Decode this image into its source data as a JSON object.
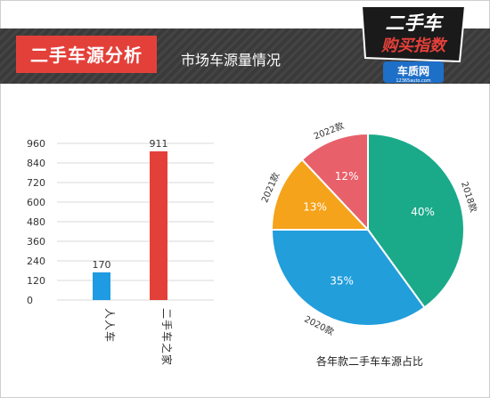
{
  "header": {
    "title": "二手车源分析",
    "subtitle": "市场车源量情况",
    "logo_line1": "二手车",
    "logo_line2": "购买指数",
    "logo_brand": "车质网",
    "logo_url": "12365auto.com"
  },
  "colors": {
    "banner_bg": "#3a3a3a",
    "title_bg": "#e4403a",
    "bar_renren": "#1e9be3",
    "bar_ershou": "#e4403a",
    "pie_2018": "#1aaa8a",
    "pie_2020": "#229edb",
    "pie_2021": "#f5a31a",
    "pie_2022": "#e8606a"
  },
  "chart_data": [
    {
      "type": "bar",
      "categories": [
        "人人车",
        "二手车之家"
      ],
      "values": [
        170,
        911
      ],
      "ylim": [
        0,
        960
      ],
      "yticks": [
        0,
        120,
        240,
        360,
        480,
        600,
        720,
        840,
        960
      ],
      "grid": true
    },
    {
      "type": "pie",
      "title": "各年款二手车车源占比",
      "labels": [
        "2018款",
        "2020款",
        "2021款",
        "2022款"
      ],
      "values": [
        40,
        35,
        13,
        12
      ],
      "value_labels": [
        "40%",
        "35%",
        "13%",
        "12%"
      ]
    }
  ]
}
